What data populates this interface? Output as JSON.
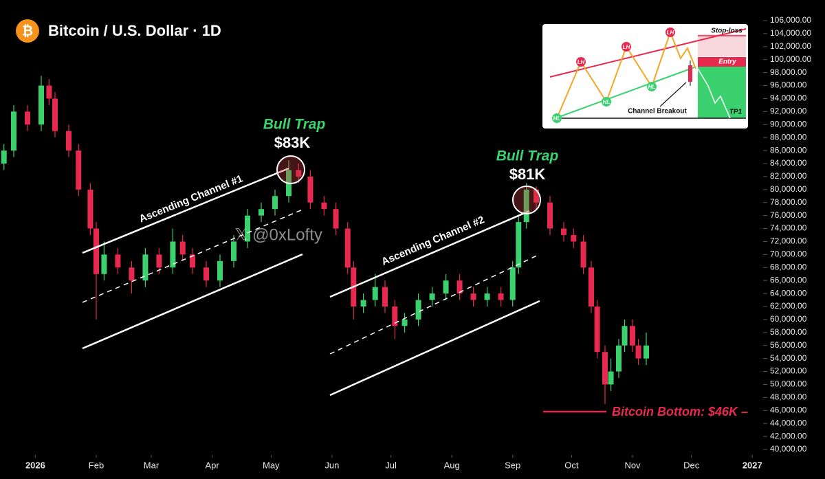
{
  "title": "Bitcoin / U.S. Dollar · 1D",
  "logo_symbol": "₿",
  "watermark": "𝕏 @0xLofty",
  "annotations": {
    "bull_trap_1": "Bull Trap",
    "price_1": "$83K",
    "bull_trap_2": "Bull Trap",
    "price_2": "$81K",
    "channel_1": "Ascending Channel #1",
    "channel_2": "Ascending Channel #2",
    "bottom": "Bitcoin Bottom: $46K –"
  },
  "inset": {
    "lh": [
      "LH",
      "LH",
      "LH"
    ],
    "hl": [
      "HL",
      "HL",
      "HL"
    ],
    "stop_loss": "Stop-loss",
    "entry": "Entry",
    "tp1": "TP1",
    "breakout": "Channel Breakout"
  },
  "chart_data": {
    "type": "candlestick",
    "up_color": "#3bd16f",
    "down_color": "#e8294f",
    "xlim": [
      -18,
      367
    ],
    "xticks": [
      {
        "value": 0,
        "label": "2026"
      },
      {
        "value": 31,
        "label": "Feb"
      },
      {
        "value": 59,
        "label": "Mar"
      },
      {
        "value": 90,
        "label": "Apr"
      },
      {
        "value": 120,
        "label": "May"
      },
      {
        "value": 151,
        "label": "Jun"
      },
      {
        "value": 181,
        "label": "Jul"
      },
      {
        "value": 212,
        "label": "Aug"
      },
      {
        "value": 243,
        "label": "Sep"
      },
      {
        "value": 273,
        "label": "Oct"
      },
      {
        "value": 304,
        "label": "Nov"
      },
      {
        "value": 334,
        "label": "Dec"
      },
      {
        "value": 365,
        "label": "2027"
      }
    ],
    "ylim": [
      40000,
      106000
    ],
    "yticks": [
      {
        "value": 40000,
        "label": "40,000.00"
      },
      {
        "value": 42000,
        "label": "42,000.00"
      },
      {
        "value": 44000,
        "label": "44,000.00"
      },
      {
        "value": 46000,
        "label": "46,000.00"
      },
      {
        "value": 48000,
        "label": "48,000.00"
      },
      {
        "value": 50000,
        "label": "50,000.00"
      },
      {
        "value": 52000,
        "label": "52,000.00"
      },
      {
        "value": 54000,
        "label": "54,000.00"
      },
      {
        "value": 56000,
        "label": "56,000.00"
      },
      {
        "value": 58000,
        "label": "58,000.00"
      },
      {
        "value": 60000,
        "label": "60,000.00"
      },
      {
        "value": 62000,
        "label": "62,000.00"
      },
      {
        "value": 64000,
        "label": "64,000.00"
      },
      {
        "value": 66000,
        "label": "66,000.00"
      },
      {
        "value": 68000,
        "label": "68,000.00"
      },
      {
        "value": 70000,
        "label": "70,000.00"
      },
      {
        "value": 72000,
        "label": "72,000.00"
      },
      {
        "value": 74000,
        "label": "74,000.00"
      },
      {
        "value": 76000,
        "label": "76,000.00"
      },
      {
        "value": 78000,
        "label": "78,000.00"
      },
      {
        "value": 80000,
        "label": "80,000.00"
      },
      {
        "value": 82000,
        "label": "82,000.00"
      },
      {
        "value": 84000,
        "label": "84,000.00"
      },
      {
        "value": 86000,
        "label": "86,000.00"
      },
      {
        "value": 88000,
        "label": "88,000.00"
      },
      {
        "value": 90000,
        "label": "90,000.00"
      },
      {
        "value": 92000,
        "label": "92,000.00"
      },
      {
        "value": 94000,
        "label": "94,000.00"
      },
      {
        "value": 96000,
        "label": "96,000.00"
      },
      {
        "value": 98000,
        "label": "98,000.00"
      },
      {
        "value": 100000,
        "label": "100,000.00"
      },
      {
        "value": 102000,
        "label": "102,000.00"
      },
      {
        "value": 104000,
        "label": "104,000.00"
      },
      {
        "value": 106000,
        "label": "106,000.00"
      }
    ],
    "x": [
      -16,
      -11,
      -4,
      3,
      7,
      10,
      17,
      22,
      28,
      31,
      35,
      42,
      49,
      56,
      63,
      70,
      75,
      80,
      87,
      94,
      101,
      108,
      115,
      122,
      129,
      134,
      140,
      147,
      153,
      159,
      162,
      167,
      173,
      178,
      183,
      188,
      195,
      202,
      209,
      216,
      223,
      230,
      237,
      243,
      246,
      250,
      255,
      262,
      269,
      274,
      279,
      283,
      286,
      290,
      293,
      297,
      300,
      304,
      307,
      311
    ],
    "open": [
      84000,
      86000,
      92000,
      90000,
      96000,
      94000,
      89000,
      86000,
      80000,
      74000,
      67000,
      70000,
      68000,
      66000,
      70000,
      68000,
      72000,
      70000,
      68000,
      66000,
      69000,
      72000,
      76000,
      77000,
      79000,
      83000,
      82000,
      78000,
      77000,
      74000,
      68000,
      62000,
      63000,
      65000,
      62000,
      59000,
      60000,
      63000,
      64000,
      66000,
      64000,
      63000,
      64000,
      63000,
      68000,
      75000,
      80000,
      78000,
      74000,
      73000,
      72000,
      68000,
      62000,
      55000,
      50000,
      52000,
      56000,
      59000,
      56000,
      54000
    ],
    "high": [
      87000,
      93000,
      93000,
      97500,
      97000,
      95000,
      90000,
      87000,
      81000,
      75000,
      72000,
      71000,
      69000,
      71000,
      71000,
      74000,
      73000,
      71000,
      69000,
      70000,
      73000,
      77000,
      78000,
      80000,
      84500,
      84000,
      83000,
      79000,
      78000,
      75000,
      69000,
      64000,
      67000,
      66000,
      63000,
      61000,
      64000,
      65000,
      67000,
      67000,
      65000,
      65000,
      65000,
      69000,
      76000,
      81000,
      80500,
      79000,
      75000,
      74000,
      73000,
      69000,
      63000,
      56000,
      54000,
      57000,
      60000,
      60000,
      57000,
      58000
    ],
    "low": [
      83000,
      85000,
      89000,
      89000,
      93000,
      88000,
      85000,
      79000,
      73000,
      60000,
      66000,
      67000,
      64000,
      65000,
      67000,
      67000,
      69000,
      67000,
      65000,
      65000,
      68000,
      71000,
      75000,
      76000,
      78000,
      81000,
      77000,
      76000,
      73000,
      67000,
      60000,
      61000,
      62000,
      61000,
      57000,
      58000,
      59000,
      62000,
      63000,
      63000,
      62000,
      62000,
      62000,
      62000,
      67000,
      74000,
      77000,
      73000,
      72000,
      71000,
      67000,
      61000,
      54000,
      47000,
      49000,
      51000,
      55000,
      55000,
      53000,
      53000
    ],
    "close": [
      86000,
      92000,
      90000,
      96000,
      94000,
      89000,
      86000,
      80000,
      74000,
      67000,
      70000,
      68000,
      66000,
      70000,
      68000,
      72000,
      70000,
      68000,
      66000,
      69000,
      72000,
      76000,
      77000,
      79000,
      83000,
      82000,
      78000,
      77000,
      74000,
      68000,
      62000,
      63000,
      65000,
      62000,
      59000,
      60000,
      63000,
      64000,
      66000,
      64000,
      63000,
      64000,
      63000,
      68000,
      75000,
      80000,
      78000,
      74000,
      73000,
      72000,
      68000,
      62000,
      55000,
      50000,
      52000,
      56000,
      59000,
      56000,
      54000,
      56000
    ]
  }
}
